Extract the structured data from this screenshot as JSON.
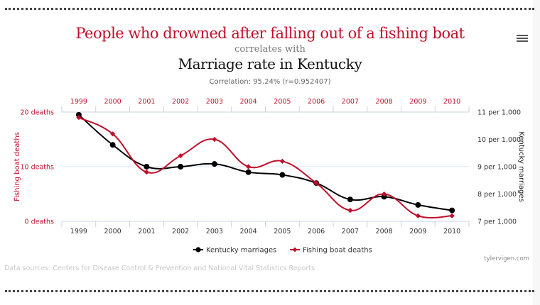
{
  "header": {
    "title_primary": "People who drowned after falling out of a fishing boat",
    "connector": "correlates with",
    "title_secondary": "Marriage rate in Kentucky",
    "correlation": "Correlation: 95.24% (r=0.952407)",
    "menu_icon": "hamburger-menu-icon"
  },
  "footer": {
    "sources": "Data sources: Centers for Disease Control & Prevention and National Vital Statistics Reports",
    "credit": "tylervigen.com"
  },
  "colors": {
    "red": "#c0102b",
    "black": "#000000",
    "grid": "#dde3ec",
    "axis": "#c9d3e3"
  },
  "chart_data": {
    "type": "line",
    "categories": [
      "1999",
      "2000",
      "2001",
      "2002",
      "2003",
      "2004",
      "2005",
      "2006",
      "2007",
      "2008",
      "2009",
      "2010"
    ],
    "series": [
      {
        "name": "Kentucky marriages",
        "axis": "right",
        "color": "#000000",
        "marker": "circle",
        "values": [
          10.9,
          9.8,
          9.0,
          9.0,
          9.1,
          8.8,
          8.7,
          8.4,
          7.8,
          7.9,
          7.6,
          7.4
        ]
      },
      {
        "name": "Fishing boat deaths",
        "axis": "left",
        "color": "#c0102b",
        "marker": "diamond",
        "values": [
          19,
          16,
          9,
          12,
          15,
          10,
          11,
          7,
          2,
          5,
          1,
          1
        ]
      }
    ],
    "left_axis": {
      "label": "Fishing boat deaths",
      "range": [
        0,
        20
      ],
      "ticks": [
        {
          "value": 20,
          "label": "20 deaths"
        },
        {
          "value": 10,
          "label": "10 deaths"
        },
        {
          "value": 0,
          "label": "0 deaths"
        }
      ]
    },
    "right_axis": {
      "label": "Kentucky marriages",
      "range": [
        7,
        11
      ],
      "ticks": [
        {
          "value": 11,
          "label": "11 per 1,000"
        },
        {
          "value": 10,
          "label": "10 per 1,000"
        },
        {
          "value": 9,
          "label": "9 per 1,000"
        },
        {
          "value": 8,
          "label": "8 per 1,000"
        },
        {
          "value": 7,
          "label": "7 per 1,000"
        }
      ]
    },
    "legend_position": "bottom-center",
    "grid": true
  }
}
